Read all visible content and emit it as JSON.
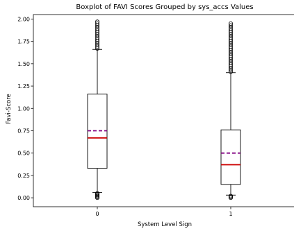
{
  "chart_data": {
    "type": "boxplot",
    "title": "Boxplot of FAVI Scores Grouped by sys_accs Values",
    "xlabel": "System Level Sign",
    "ylabel": "Favi-Score",
    "ylim": [
      -0.1,
      2.05
    ],
    "yticks": [
      "0.00",
      "0.25",
      "0.50",
      "0.75",
      "1.00",
      "1.25",
      "1.50",
      "1.75",
      "2.00"
    ],
    "grid": false,
    "categories": [
      "0",
      "1"
    ],
    "boxes": [
      {
        "category": "0",
        "whisker_low": 0.06,
        "q1": 0.33,
        "median": 0.67,
        "mean": 0.75,
        "q3": 1.16,
        "whisker_high": 1.66,
        "outliers_low": [
          0.0,
          0.01,
          0.02,
          0.03,
          0.04,
          0.05
        ],
        "outliers_high": [
          1.67,
          1.69,
          1.71,
          1.73,
          1.75,
          1.77,
          1.79,
          1.81,
          1.83,
          1.85,
          1.87,
          1.89,
          1.91,
          1.93,
          1.95,
          1.97
        ]
      },
      {
        "category": "1",
        "whisker_low": 0.03,
        "q1": 0.15,
        "median": 0.37,
        "mean": 0.5,
        "q3": 0.76,
        "whisker_high": 1.4,
        "outliers_low": [
          0.0,
          0.01,
          0.02
        ],
        "outliers_high": [
          1.41,
          1.43,
          1.45,
          1.47,
          1.49,
          1.51,
          1.53,
          1.55,
          1.57,
          1.59,
          1.61,
          1.63,
          1.65,
          1.67,
          1.69,
          1.71,
          1.73,
          1.75,
          1.77,
          1.79,
          1.81,
          1.83,
          1.85,
          1.87,
          1.89,
          1.91,
          1.93,
          1.95
        ]
      }
    ],
    "colors": {
      "median": "#cc0000",
      "mean": "#800080",
      "box": "#000000"
    }
  }
}
